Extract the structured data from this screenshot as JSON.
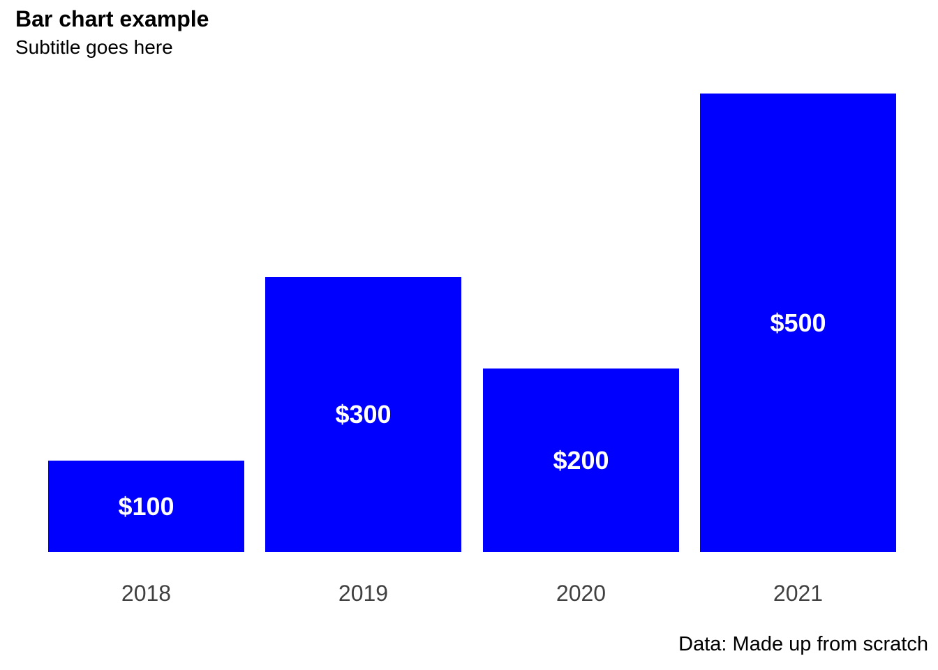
{
  "chart_data": {
    "type": "bar",
    "title": "Bar chart example",
    "subtitle": "Subtitle goes here",
    "caption": "Data: Made up from scratch",
    "categories": [
      "2018",
      "2019",
      "2020",
      "2021"
    ],
    "values": [
      100,
      300,
      200,
      500
    ],
    "value_labels": [
      "$100",
      "$300",
      "$200",
      "$500"
    ],
    "xlabel": "",
    "ylabel": "",
    "ylim": [
      0,
      500
    ],
    "grid": false,
    "legend": false,
    "axes_lines_visible": false,
    "bar_color": "#0000ff",
    "bar_label_color": "#ffffff",
    "axis_text_color": "#404040",
    "title_color": "#000000",
    "background_color": "#ffffff"
  }
}
